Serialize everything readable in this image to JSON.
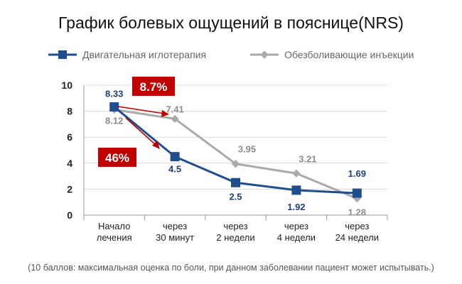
{
  "chart_data": {
    "type": "line",
    "title": "График болевых ощущений в пояснице(NRS)",
    "categories": [
      [
        "Начало",
        "лечения"
      ],
      [
        "через",
        "30 минут"
      ],
      [
        "через",
        "2 недели"
      ],
      [
        "через",
        "4 недели"
      ],
      [
        "через",
        "24 недели"
      ]
    ],
    "series": [
      {
        "name": "Двигательная иглотерапия",
        "values": [
          8.33,
          4.5,
          2.5,
          1.92,
          1.69
        ],
        "color": "#1f4e8c",
        "marker": "square"
      },
      {
        "name": "Обезболивающие инъекции",
        "values": [
          8.12,
          7.41,
          3.95,
          3.21,
          1.28
        ],
        "color": "#aaaaaa",
        "marker": "diamond"
      }
    ],
    "ylim": [
      0,
      10
    ],
    "yticks": [
      0,
      2,
      4,
      6,
      8,
      10
    ],
    "grid": true,
    "legend_position": "top",
    "annotations": [
      {
        "text": "8.7%",
        "color": "#c00000"
      },
      {
        "text": "46%",
        "color": "#c00000"
      }
    ],
    "footnote": "(10 баллов: максимальная оценка по боли, при данном заболевании пациент может испытывать.)"
  }
}
